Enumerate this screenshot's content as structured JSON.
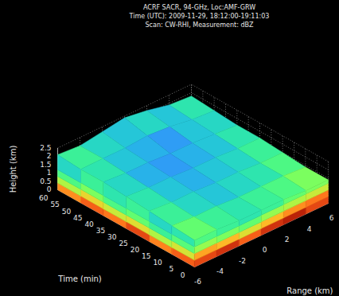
{
  "chart_data": {
    "type": "volume",
    "title_lines": [
      "ACRF SACR, 94-GHz, Loc:AMF-GRW",
      "Time (UTC): 2009-11-29, 18:12:00-19:11:03",
      "Scan: CW-RHI, Measurement: dBZ"
    ],
    "x_label": "Range (km)",
    "y_label": "Time (min)",
    "z_label": "Height (km)",
    "xlim": [
      -6,
      6
    ],
    "xticks": [
      -6,
      -4,
      -2,
      0,
      2,
      4,
      6
    ],
    "ylim": [
      0,
      60
    ],
    "yticks": [
      0,
      5,
      10,
      15,
      20,
      25,
      30,
      35,
      40,
      45,
      50,
      55,
      60
    ],
    "zlim": [
      0,
      2.5
    ],
    "zticks": [
      0,
      0.5,
      1,
      1.5,
      2,
      2.5
    ],
    "grid": true,
    "color": "turbo",
    "dbz_range": [
      -40,
      20
    ],
    "range_km": [
      -6,
      -4,
      -2,
      0,
      2,
      4,
      6
    ],
    "time_min": [
      0,
      10,
      20,
      30,
      40,
      50,
      60
    ],
    "top_height_km": [
      [
        1.6,
        1.6,
        1.5,
        1.5,
        1.5,
        1.4,
        1.4
      ],
      [
        1.7,
        1.6,
        1.6,
        1.5,
        1.5,
        1.5,
        1.4
      ],
      [
        1.8,
        1.7,
        1.7,
        1.6,
        1.6,
        1.5,
        1.5
      ],
      [
        1.9,
        1.8,
        1.8,
        1.7,
        1.7,
        1.6,
        1.6
      ],
      [
        2.0,
        1.9,
        1.9,
        1.8,
        1.8,
        1.7,
        1.6
      ],
      [
        2.0,
        2.0,
        2.0,
        2.1,
        2.0,
        1.8,
        1.7
      ],
      [
        2.1,
        2.0,
        2.2,
        2.4,
        2.2,
        1.9,
        1.8
      ]
    ],
    "top_dbz": [
      [
        -14,
        -18,
        -20,
        -18,
        -16,
        -12
      ],
      [
        -18,
        -22,
        -24,
        -22,
        -20,
        -16
      ],
      [
        -20,
        -24,
        -26,
        -24,
        -22,
        -18
      ],
      [
        -22,
        -26,
        -28,
        -26,
        -24,
        -20
      ],
      [
        -20,
        -24,
        -26,
        -28,
        -24,
        -22
      ],
      [
        -18,
        -22,
        -24,
        -22,
        -24,
        -20
      ]
    ],
    "face_heights_km": [
      0,
      0.4,
      0.8,
      1.2
    ],
    "left_face_dbz": [
      [
        8,
        5,
        10,
        6,
        8,
        4
      ],
      [
        -5,
        -8,
        -4,
        -6,
        -3,
        -8
      ],
      [
        -15,
        -18,
        -14,
        -16,
        -12,
        -16
      ],
      [
        -20,
        -22,
        -18,
        -20,
        -18,
        -22
      ]
    ],
    "front_face_dbz": [
      [
        10,
        12,
        8,
        12,
        14,
        10
      ],
      [
        2,
        0,
        -4,
        0,
        4,
        6
      ],
      [
        -10,
        -12,
        -14,
        -10,
        -8,
        -6
      ],
      [
        -16,
        -18,
        -20,
        -18,
        -14,
        -12
      ]
    ]
  }
}
